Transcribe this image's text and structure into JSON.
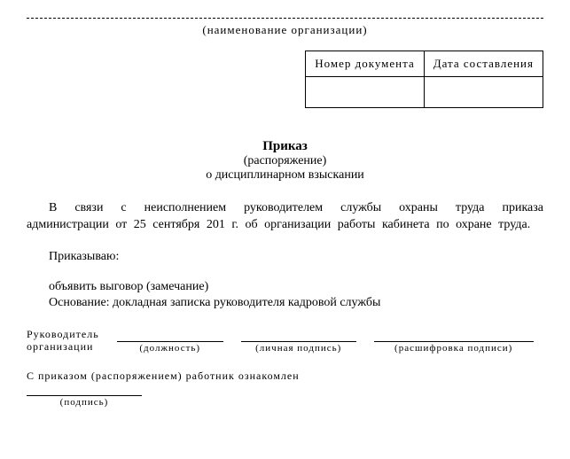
{
  "header": {
    "org_label": "(наименование организации)"
  },
  "doc_table": {
    "col1": "Номер документа",
    "col2": "Дата составления",
    "val1": "",
    "val2": ""
  },
  "title": {
    "line1": "Приказ",
    "line2": "(распоряжение)",
    "line3": "о дисциплинарном взыскании"
  },
  "body": {
    "preamble": "В связи с неисполнением руководителем службы охраны труда приказа администрации от 25 сентября 201  г. об организации работы кабинета по охране труда.",
    "order_word": "Приказываю:",
    "decision": "объявить выговор (замечание)",
    "basis": "Основание: докладная записка руководителя кадровой службы"
  },
  "signatures": {
    "head_label_line1": "Руководитель",
    "head_label_line2": "организации",
    "position": "(должность)",
    "personal_sig": "(личная подпись)",
    "decipher": "(расшифровка подписи)",
    "acknowledgment": "С приказом (распоряжением) работник ознакомлен",
    "sig_label": "(подпись)"
  }
}
